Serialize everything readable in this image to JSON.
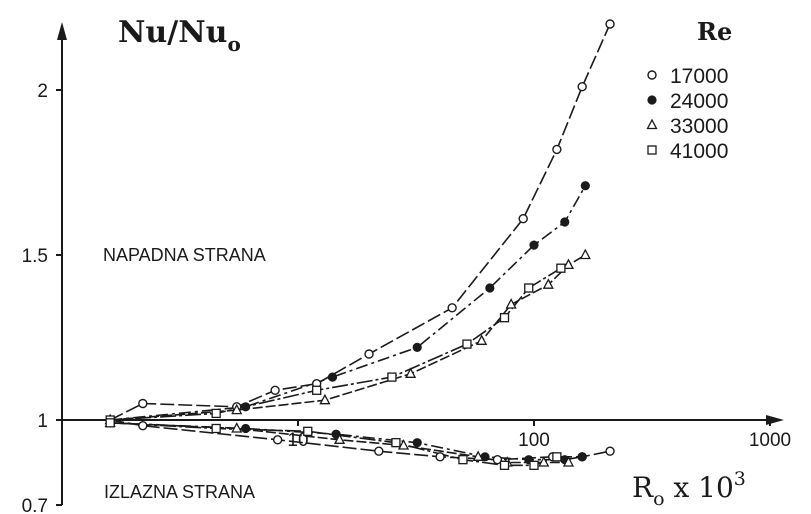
{
  "chart_data": {
    "type": "scatter",
    "ylabel_main": "Nu/Nu",
    "ylabel_sub": "o",
    "xlabel_main": "R",
    "xlabel_sub": "o",
    "xlabel_rest": " x 10",
    "xlabel_sup": "3",
    "legend_title": "Re",
    "legend_position": "top-right",
    "grid": false,
    "x_scale": "log",
    "xlim": [
      1,
      1000
    ],
    "ylim": [
      0.7,
      2.25
    ],
    "x_ticks": [
      {
        "value": 10,
        "label": "10"
      },
      {
        "value": 100,
        "label": "100"
      },
      {
        "value": 1000,
        "label": "1000"
      }
    ],
    "y_ticks": [
      {
        "value": 0.7,
        "label": "0.7"
      },
      {
        "value": 1,
        "label": "1"
      },
      {
        "value": 1.5,
        "label": "1.5"
      },
      {
        "value": 2,
        "label": "2"
      }
    ],
    "annotations": [
      "NAPADNA STRANA",
      "IZLAZNA STRANA"
    ],
    "series": [
      {
        "name": "17000",
        "marker": "open-circle",
        "upper": [
          [
            1.6,
            1.0
          ],
          [
            2.2,
            1.05
          ],
          [
            5.5,
            1.04
          ],
          [
            8,
            1.09
          ],
          [
            12,
            1.11
          ],
          [
            20,
            1.2
          ],
          [
            45,
            1.34
          ],
          [
            90,
            1.61
          ],
          [
            125,
            1.82
          ],
          [
            160,
            2.01
          ],
          [
            210,
            2.2
          ]
        ],
        "lower": [
          [
            1.6,
            1.0
          ],
          [
            2.2,
            0.98
          ],
          [
            8.2,
            0.93
          ],
          [
            22,
            0.89
          ],
          [
            40,
            0.87
          ],
          [
            70,
            0.86
          ],
          [
            120,
            0.87
          ],
          [
            160,
            0.87
          ],
          [
            210,
            0.89
          ]
        ]
      },
      {
        "name": "24000",
        "marker": "filled-circle",
        "upper": [
          [
            1.6,
            1.0
          ],
          [
            6,
            1.04
          ],
          [
            14,
            1.13
          ],
          [
            32,
            1.22
          ],
          [
            65,
            1.4
          ],
          [
            100,
            1.53
          ],
          [
            135,
            1.6
          ],
          [
            165,
            1.71
          ]
        ],
        "lower": [
          [
            1.6,
            0.99
          ],
          [
            6,
            0.97
          ],
          [
            14.5,
            0.95
          ],
          [
            32,
            0.92
          ],
          [
            62,
            0.87
          ],
          [
            95,
            0.86
          ],
          [
            135,
            0.86
          ],
          [
            160,
            0.87
          ]
        ]
      },
      {
        "name": "33000",
        "marker": "open-triangle",
        "upper": [
          [
            1.6,
            1.0
          ],
          [
            5.5,
            1.03
          ],
          [
            13,
            1.06
          ],
          [
            30,
            1.14
          ],
          [
            60,
            1.24
          ],
          [
            80,
            1.35
          ],
          [
            115,
            1.41
          ],
          [
            140,
            1.47
          ],
          [
            165,
            1.5
          ]
        ],
        "lower": [
          [
            1.6,
            0.99
          ],
          [
            5.5,
            0.97
          ],
          [
            15,
            0.93
          ],
          [
            28,
            0.91
          ],
          [
            58,
            0.87
          ],
          [
            77,
            0.85
          ],
          [
            110,
            0.85
          ],
          [
            140,
            0.85
          ]
        ]
      },
      {
        "name": "41000",
        "marker": "open-square",
        "upper": [
          [
            1.6,
            1.0
          ],
          [
            4.5,
            1.02
          ],
          [
            12,
            1.09
          ],
          [
            25,
            1.13
          ],
          [
            52,
            1.23
          ],
          [
            75,
            1.31
          ],
          [
            95,
            1.4
          ],
          [
            130,
            1.46
          ]
        ],
        "lower": [
          [
            1.6,
            0.99
          ],
          [
            4.5,
            0.97
          ],
          [
            11,
            0.96
          ],
          [
            26,
            0.92
          ],
          [
            50,
            0.86
          ],
          [
            75,
            0.84
          ],
          [
            100,
            0.84
          ],
          [
            125,
            0.87
          ]
        ]
      }
    ]
  }
}
